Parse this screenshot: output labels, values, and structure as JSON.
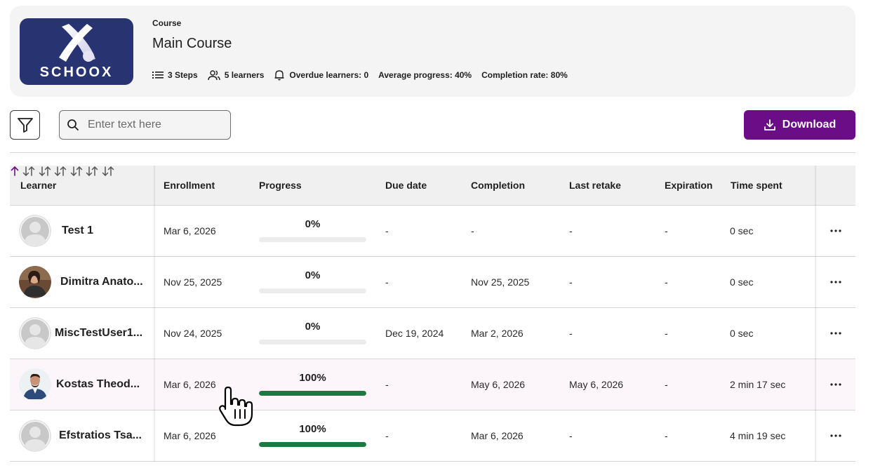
{
  "header": {
    "logo_text": "SCHOOX",
    "course_label": "Course",
    "course_title": "Main Course",
    "stats": {
      "steps": "3 Steps",
      "learners": "5 learners",
      "overdue": "Overdue learners: 0",
      "avg_progress": "Average progress: 40%",
      "completion_rate": "Completion rate: 80%"
    }
  },
  "toolbar": {
    "search_placeholder": "Enter text here",
    "download_label": "Download"
  },
  "table": {
    "columns": {
      "learner": "Learner",
      "enrollment": "Enrollment",
      "progress": "Progress",
      "due_date": "Due date",
      "completion": "Completion",
      "last_retake": "Last retake",
      "expiration": "Expiration",
      "time_spent": "Time spent"
    },
    "rows": [
      {
        "name": "Test 1",
        "enrollment": "Mar 6, 2026",
        "progress": "0%",
        "progress_value": 0,
        "due_date": "-",
        "completion": "-",
        "last_retake": "-",
        "expiration": "-",
        "time_spent": "0 sec",
        "avatar": "default"
      },
      {
        "name": "Dimitra Anato...",
        "enrollment": "Nov 25, 2025",
        "progress": "0%",
        "progress_value": 0,
        "due_date": "-",
        "completion": "Nov 25, 2025",
        "last_retake": "-",
        "expiration": "-",
        "time_spent": "0 sec",
        "avatar": "photo"
      },
      {
        "name": "MiscTestUser1...",
        "enrollment": "Nov 24, 2025",
        "progress": "0%",
        "progress_value": 0,
        "due_date": "Dec 19, 2024",
        "completion": "Mar 2, 2026",
        "last_retake": "-",
        "expiration": "-",
        "time_spent": "0 sec",
        "avatar": "default"
      },
      {
        "name": "Kostas Theod...",
        "enrollment": "Mar 6, 2026",
        "progress": "100%",
        "progress_value": 100,
        "due_date": "-",
        "completion": "May 6, 2026",
        "last_retake": "May 6, 2026",
        "expiration": "-",
        "time_spent": "2 min 17 sec",
        "avatar": "photo"
      },
      {
        "name": "Efstratios Tsa...",
        "enrollment": "Mar 6, 2026",
        "progress": "100%",
        "progress_value": 100,
        "due_date": "-",
        "completion": "Mar 6, 2026",
        "last_retake": "-",
        "expiration": "-",
        "time_spent": "4 min 19 sec",
        "avatar": "default"
      }
    ]
  },
  "colors": {
    "accent": "#6c0d88",
    "logo_bg": "#283371",
    "progress_fill": "#1b7a3f",
    "hover_row": "#fcf6fb"
  }
}
